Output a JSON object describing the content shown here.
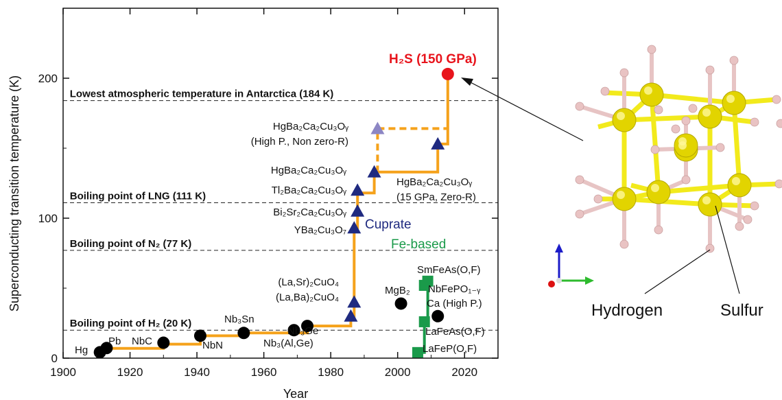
{
  "chart_data": {
    "type": "scatter",
    "xlabel": "Year",
    "ylabel": "Superconducting transition temperature (K)",
    "xlim": [
      1900,
      2030
    ],
    "ylim": [
      0,
      250
    ],
    "xticks": [
      1900,
      1920,
      1940,
      1960,
      1980,
      2000,
      2020
    ],
    "yticks": [
      0,
      100,
      200
    ],
    "reference_lines": [
      {
        "label": "Lowest atmospheric temperature in Antarctica (184 K)",
        "value": 184
      },
      {
        "label": "Boiling point of LNG (111 K)",
        "value": 111
      },
      {
        "label": "Boiling point of N₂ (77 K)",
        "value": 77
      },
      {
        "label": "Boiling point of H₂ (20 K)",
        "value": 20
      }
    ],
    "series": [
      {
        "name": "",
        "marker": "circle",
        "color": "#000000",
        "points": [
          {
            "x": 1911,
            "y": 4.2,
            "label": "Hg"
          },
          {
            "x": 1913,
            "y": 7.2,
            "label": "Pb"
          },
          {
            "x": 1930,
            "y": 11,
            "label": "NbC"
          },
          {
            "x": 1941,
            "y": 16,
            "label": "NbN"
          },
          {
            "x": 1954,
            "y": 18,
            "label": "Nb₃Sn"
          },
          {
            "x": 1969,
            "y": 20,
            "label": "Nb₃(Al,Ge)"
          },
          {
            "x": 1973,
            "y": 23,
            "label": "Nb₃Ge"
          },
          {
            "x": 2001,
            "y": 39,
            "label": "MgB₂"
          },
          {
            "x": 2012,
            "y": 30,
            "label": "Ca (High P.)"
          }
        ]
      },
      {
        "name": "Cuprate",
        "marker": "triangle",
        "color": "#1f2a80",
        "points": [
          {
            "x": 1986,
            "y": 30,
            "label": "(La,Ba)₂CuO₄"
          },
          {
            "x": 1987,
            "y": 40,
            "label": "(La,Sr)₂CuO₄"
          },
          {
            "x": 1987,
            "y": 93,
            "label": "YBa₂Cu₃O₇"
          },
          {
            "x": 1988,
            "y": 105,
            "label": "Bi₂Sr₂Ca₂Cu₃Oᵧ"
          },
          {
            "x": 1988,
            "y": 120,
            "label": "Tl₂Ba₂Ca₂Cu₃Oᵧ"
          },
          {
            "x": 1993,
            "y": 133,
            "label": "HgBa₂Ca₂Cu₃Oᵧ"
          },
          {
            "x": 2012,
            "y": 153,
            "label": "HgBa₂Ca₂Cu₃Oᵧ (15 GPa, Zero-R)"
          }
        ]
      },
      {
        "name": "",
        "marker": "triangle",
        "color": "#8c86c4",
        "points": [
          {
            "x": 1994,
            "y": 164,
            "label": "HgBa₂Ca₂Cu₃Oᵧ (High P., Non zero-R)"
          }
        ]
      },
      {
        "name": "Fe-based",
        "marker": "square",
        "color": "#1a9a4a",
        "points": [
          {
            "x": 2006,
            "y": 4,
            "label": "LaFeP(O,F)"
          },
          {
            "x": 2008,
            "y": 26,
            "label": "LaFeAs(O,F)"
          },
          {
            "x": 2008,
            "y": 52,
            "label": "NbFePO₁₋ᵧ"
          },
          {
            "x": 2009,
            "y": 55,
            "label": "SmFeAs(O,F)"
          }
        ]
      },
      {
        "name": "",
        "marker": "circle",
        "color": "#e8141c",
        "points": [
          {
            "x": 2015,
            "y": 203,
            "label": "H₂S (150 GPa)"
          }
        ]
      }
    ],
    "steps": {
      "main": [
        [
          1911,
          4
        ],
        [
          1913,
          4
        ],
        [
          1913,
          7
        ],
        [
          1930,
          7
        ],
        [
          1930,
          10
        ],
        [
          1941,
          10
        ],
        [
          1941,
          16
        ],
        [
          1954,
          16
        ],
        [
          1954,
          18
        ],
        [
          1973,
          18
        ],
        [
          1973,
          23
        ],
        [
          1986,
          23
        ],
        [
          1986,
          30
        ],
        [
          1987,
          30
        ],
        [
          1987,
          93
        ],
        [
          1988,
          93
        ],
        [
          1988,
          118
        ],
        [
          1993,
          118
        ],
        [
          1993,
          133
        ],
        [
          2012,
          133
        ],
        [
          2012,
          153
        ],
        [
          2015,
          153
        ],
        [
          2015,
          203
        ]
      ],
      "dashed": [
        [
          1993,
          135
        ],
        [
          1994,
          135
        ],
        [
          1994,
          164
        ],
        [
          2015,
          164
        ]
      ],
      "fe": [
        [
          2006,
          4
        ],
        [
          2008,
          4
        ],
        [
          2008,
          26
        ],
        [
          2009,
          26
        ],
        [
          2009,
          55
        ]
      ]
    },
    "annotation": {
      "Hydrogen": "Hydrogen",
      "Sulfur": "Sulfur"
    }
  },
  "colors": {
    "step": "#f5a21b",
    "cuprate_text": "#1f2a80",
    "fe_text": "#1a9a4a",
    "h2s_text": "#e8141c",
    "sulfur": "#e2d400",
    "hydrogen": "#e9c3c3",
    "bond_yellow": "#f2ea1c",
    "bond_pink": "#e7c4c4"
  }
}
